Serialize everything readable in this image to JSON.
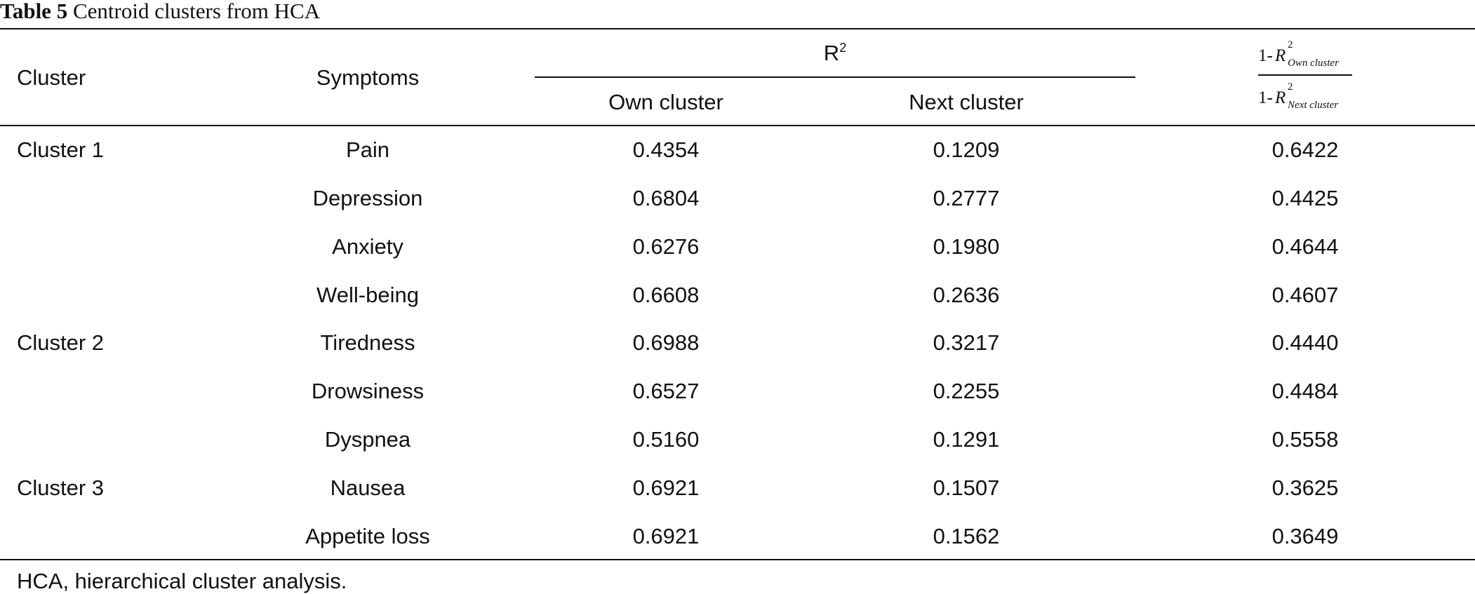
{
  "caption": {
    "label": "Table 5",
    "text": "Centroid clusters from HCA"
  },
  "header": {
    "cluster": "Cluster",
    "symptoms": "Symptoms",
    "r2_base": "R",
    "r2_sup": "2",
    "own_cluster": "Own cluster",
    "next_cluster": "Next cluster",
    "ratio": {
      "numerator_one": "1-",
      "numerator_r": "R",
      "numerator_sup": "2",
      "numerator_sub": "Own cluster",
      "denominator_one": "1-",
      "denominator_r": "R",
      "denominator_sup": "2",
      "denominator_sub": "Next cluster"
    }
  },
  "rows": [
    {
      "cluster": "Cluster 1",
      "symptom": "Pain",
      "own": "0.4354",
      "next": "0.1209",
      "ratio": "0.6422"
    },
    {
      "cluster": "",
      "symptom": "Depression",
      "own": "0.6804",
      "next": "0.2777",
      "ratio": "0.4425"
    },
    {
      "cluster": "",
      "symptom": "Anxiety",
      "own": "0.6276",
      "next": "0.1980",
      "ratio": "0.4644"
    },
    {
      "cluster": "",
      "symptom": "Well-being",
      "own": "0.6608",
      "next": "0.2636",
      "ratio": "0.4607"
    },
    {
      "cluster": "Cluster 2",
      "symptom": "Tiredness",
      "own": "0.6988",
      "next": "0.3217",
      "ratio": "0.4440"
    },
    {
      "cluster": "",
      "symptom": "Drowsiness",
      "own": "0.6527",
      "next": "0.2255",
      "ratio": "0.4484"
    },
    {
      "cluster": "",
      "symptom": "Dyspnea",
      "own": "0.5160",
      "next": "0.1291",
      "ratio": "0.5558"
    },
    {
      "cluster": "Cluster 3",
      "symptom": "Nausea",
      "own": "0.6921",
      "next": "0.1507",
      "ratio": "0.3625"
    },
    {
      "cluster": "",
      "symptom": "Appetite loss",
      "own": "0.6921",
      "next": "0.1562",
      "ratio": "0.3649"
    }
  ],
  "footnote": "HCA, hierarchical cluster analysis."
}
